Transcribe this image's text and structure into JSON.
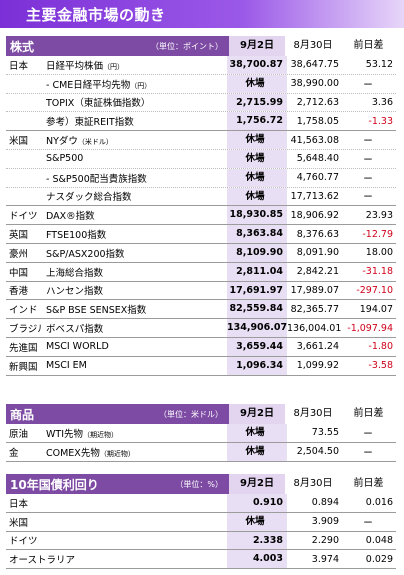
{
  "title": "主要金融市場の動き",
  "stocks": {
    "header": {
      "name": "株式",
      "unit": "（単位：ポイント）",
      "col1": "9月2日",
      "col2": "8月30日",
      "col3": "前日差"
    },
    "rows": [
      {
        "region": "日本",
        "name": "日経平均株価",
        "note": "（円）",
        "v1": "38,700.87",
        "v2": "38,647.75",
        "v3": "53.12",
        "neg": false
      },
      {
        "region": "",
        "name": "- CME日経平均先物",
        "note": "（円）",
        "v1": "休場",
        "v2": "38,990.00",
        "v3": "ー",
        "neg": false
      },
      {
        "region": "",
        "name": "TOPIX（東証株価指数）",
        "note": "",
        "v1": "2,715.99",
        "v2": "2,712.63",
        "v3": "3.36",
        "neg": false
      },
      {
        "region": "",
        "name": "参考）東証REIT指数",
        "note": "",
        "v1": "1,756.72",
        "v2": "1,758.05",
        "v3": "-1.33",
        "neg": true
      },
      {
        "region": "米国",
        "name": "NYダウ",
        "note": "（米ドル）",
        "v1": "休場",
        "v2": "41,563.08",
        "v3": "ー",
        "neg": false
      },
      {
        "region": "",
        "name": "S&P500",
        "note": "",
        "v1": "休場",
        "v2": "5,648.40",
        "v3": "ー",
        "neg": false
      },
      {
        "region": "",
        "name": "- S&P500配当貴族指数",
        "note": "",
        "v1": "休場",
        "v2": "4,760.77",
        "v3": "ー",
        "neg": false
      },
      {
        "region": "",
        "name": "ナスダック総合指数",
        "note": "",
        "v1": "休場",
        "v2": "17,713.62",
        "v3": "ー",
        "neg": false
      },
      {
        "region": "ドイツ",
        "name": "DAX®指数",
        "note": "",
        "v1": "18,930.85",
        "v2": "18,906.92",
        "v3": "23.93",
        "neg": false
      },
      {
        "region": "英国",
        "name": "FTSE100指数",
        "note": "",
        "v1": "8,363.84",
        "v2": "8,376.63",
        "v3": "-12.79",
        "neg": true
      },
      {
        "region": "豪州",
        "name": "S&P/ASX200指数",
        "note": "",
        "v1": "8,109.90",
        "v2": "8,091.90",
        "v3": "18.00",
        "neg": false
      },
      {
        "region": "中国",
        "name": "上海総合指数",
        "note": "",
        "v1": "2,811.04",
        "v2": "2,842.21",
        "v3": "-31.18",
        "neg": true
      },
      {
        "region": "香港",
        "name": "ハンセン指数",
        "note": "",
        "v1": "17,691.97",
        "v2": "17,989.07",
        "v3": "-297.10",
        "neg": true
      },
      {
        "region": "インド",
        "name": "S&P BSE SENSEX指数",
        "note": "",
        "v1": "82,559.84",
        "v2": "82,365.77",
        "v3": "194.07",
        "neg": false
      },
      {
        "region": "ブラジル",
        "name": "ボベスパ指数",
        "note": "",
        "v1": "134,906.07",
        "v2": "136,004.01",
        "v3": "-1,097.94",
        "neg": true
      },
      {
        "region": "先進国",
        "name": "MSCI WORLD",
        "note": "",
        "v1": "3,659.44",
        "v2": "3,661.24",
        "v3": "-1.80",
        "neg": true
      },
      {
        "region": "新興国",
        "name": "MSCI EM",
        "note": "",
        "v1": "1,096.34",
        "v2": "1,099.92",
        "v3": "-3.58",
        "neg": true
      }
    ]
  },
  "commodities": {
    "header": {
      "name": "商品",
      "unit": "（単位：米ドル）",
      "col1": "9月2日",
      "col2": "8月30日",
      "col3": "前日差"
    },
    "rows": [
      {
        "region": "原油",
        "name": "WTI先物",
        "note": "（期近物）",
        "v1": "休場",
        "v2": "73.55",
        "v3": "ー",
        "neg": false
      },
      {
        "region": "金",
        "name": "COMEX先物",
        "note": "（期近物）",
        "v1": "休場",
        "v2": "2,504.50",
        "v3": "ー",
        "neg": false
      }
    ]
  },
  "bonds": {
    "header": {
      "name": "10年国債利回り",
      "unit": "（単位：%）",
      "col1": "9月2日",
      "col2": "8月30日",
      "col3": "前日差"
    },
    "rows": [
      {
        "region": "日本",
        "name": "",
        "note": "",
        "v1": "0.910",
        "v2": "0.894",
        "v3": "0.016",
        "neg": false
      },
      {
        "region": "米国",
        "name": "",
        "note": "",
        "v1": "休場",
        "v2": "3.909",
        "v3": "ー",
        "neg": false
      },
      {
        "region": "ドイツ",
        "name": "",
        "note": "",
        "v1": "2.338",
        "v2": "2.290",
        "v3": "0.048",
        "neg": false
      },
      {
        "region": "オーストラリア",
        "name": "",
        "note": "",
        "v1": "4.003",
        "v2": "3.974",
        "v3": "0.029",
        "neg": false
      }
    ]
  }
}
